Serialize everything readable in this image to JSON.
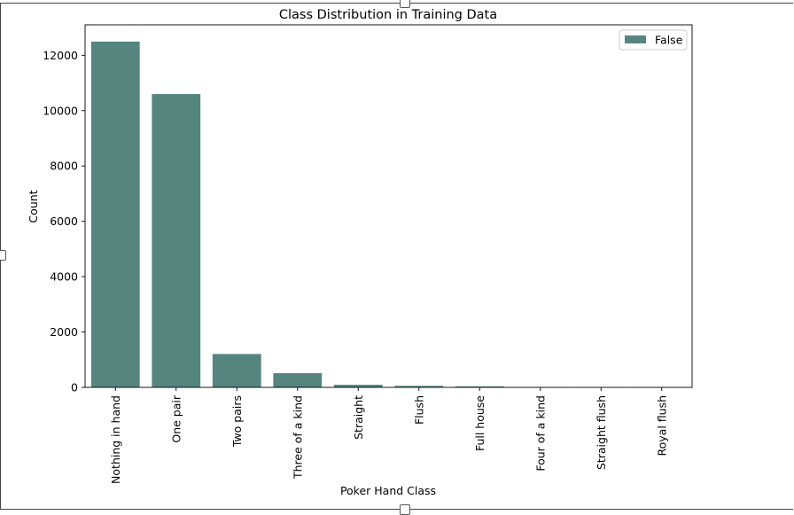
{
  "chart_data": {
    "type": "bar",
    "title": "Class Distribution in Training Data",
    "xlabel": "Poker Hand Class",
    "ylabel": "Count",
    "categories": [
      "Nothing in hand",
      "One pair",
      "Two pairs",
      "Three of a kind",
      "Straight",
      "Flush",
      "Full house",
      "Four of a kind",
      "Straight flush",
      "Royal flush"
    ],
    "series": [
      {
        "name": "False",
        "values": [
          12493,
          10599,
          1206,
          513,
          93,
          54,
          36,
          6,
          5,
          5
        ],
        "color": "#568580"
      }
    ],
    "ylim": [
      0,
      13100
    ],
    "yticks": [
      0,
      2000,
      4000,
      6000,
      8000,
      10000,
      12000
    ],
    "grid": false,
    "legend_position": "top-right"
  }
}
